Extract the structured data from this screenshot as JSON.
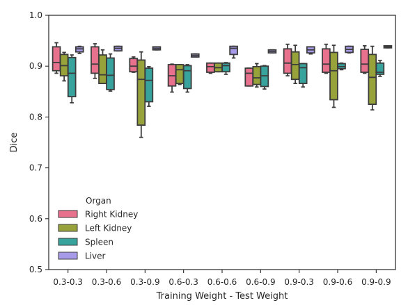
{
  "chart_data": {
    "type": "box",
    "xlabel": "Training Weight - Test Weight",
    "ylabel": "Dice",
    "ylim": [
      0.5,
      1.0
    ],
    "yticks": [
      0.5,
      0.6,
      0.7,
      0.8,
      0.9,
      1.0
    ],
    "ytick_labels": [
      "0.5",
      "0.6",
      "0.7",
      "0.8",
      "0.9",
      "1.0"
    ],
    "categories": [
      "0.3-0.3",
      "0.3-0.6",
      "0.3-0.9",
      "0.6-0.3",
      "0.6-0.6",
      "0.6-0.9",
      "0.9-0.3",
      "0.9-0.6",
      "0.9-0.9"
    ],
    "legend": {
      "title": "Organ",
      "placement": "lower-left"
    },
    "series": [
      {
        "name": "Right Kidney",
        "color": "#e8718d",
        "boxes": [
          {
            "whislo": 0.886,
            "q1": 0.891,
            "med": 0.907,
            "q3": 0.938,
            "whishi": 0.946
          },
          {
            "whislo": 0.876,
            "q1": 0.886,
            "med": 0.904,
            "q3": 0.938,
            "whishi": 0.944
          },
          {
            "whislo": 0.888,
            "q1": 0.889,
            "med": 0.9,
            "q3": 0.915,
            "whishi": 0.918
          },
          {
            "whislo": 0.849,
            "q1": 0.861,
            "med": 0.881,
            "q3": 0.903,
            "whishi": 0.904
          },
          {
            "whislo": 0.886,
            "q1": 0.888,
            "med": 0.899,
            "q3": 0.906,
            "whishi": 0.906
          },
          {
            "whislo": 0.861,
            "q1": 0.861,
            "med": 0.886,
            "q3": 0.896,
            "whishi": 0.896
          },
          {
            "whislo": 0.881,
            "q1": 0.886,
            "med": 0.906,
            "q3": 0.934,
            "whishi": 0.943
          },
          {
            "whislo": 0.886,
            "q1": 0.888,
            "med": 0.904,
            "q3": 0.934,
            "whishi": 0.943
          },
          {
            "whislo": 0.886,
            "q1": 0.888,
            "med": 0.904,
            "q3": 0.933,
            "whishi": 0.94
          }
        ]
      },
      {
        "name": "Left Kidney",
        "color": "#97a23a",
        "boxes": [
          {
            "whislo": 0.871,
            "q1": 0.881,
            "med": 0.901,
            "q3": 0.923,
            "whishi": 0.927
          },
          {
            "whislo": 0.866,
            "q1": 0.866,
            "med": 0.883,
            "q3": 0.922,
            "whishi": 0.932
          },
          {
            "whislo": 0.76,
            "q1": 0.784,
            "med": 0.874,
            "q3": 0.912,
            "whishi": 0.928
          },
          {
            "whislo": 0.864,
            "q1": 0.866,
            "med": 0.893,
            "q3": 0.903,
            "whishi": 0.903
          },
          {
            "whislo": 0.889,
            "q1": 0.889,
            "med": 0.897,
            "q3": 0.906,
            "whishi": 0.906
          },
          {
            "whislo": 0.859,
            "q1": 0.864,
            "med": 0.877,
            "q3": 0.899,
            "whishi": 0.905
          },
          {
            "whislo": 0.866,
            "q1": 0.874,
            "med": 0.903,
            "q3": 0.928,
            "whishi": 0.941
          },
          {
            "whislo": 0.819,
            "q1": 0.834,
            "med": 0.891,
            "q3": 0.927,
            "whishi": 0.941
          },
          {
            "whislo": 0.814,
            "q1": 0.825,
            "med": 0.878,
            "q3": 0.923,
            "whishi": 0.939
          }
        ]
      },
      {
        "name": "Spleen",
        "color": "#38a39d",
        "boxes": [
          {
            "whislo": 0.828,
            "q1": 0.84,
            "med": 0.886,
            "q3": 0.917,
            "whishi": 0.922
          },
          {
            "whislo": 0.851,
            "q1": 0.854,
            "med": 0.882,
            "q3": 0.916,
            "whishi": 0.924
          },
          {
            "whislo": 0.821,
            "q1": 0.83,
            "med": 0.872,
            "q3": 0.896,
            "whishi": 0.899
          },
          {
            "whislo": 0.849,
            "q1": 0.856,
            "med": 0.891,
            "q3": 0.901,
            "whishi": 0.903
          },
          {
            "whislo": 0.884,
            "q1": 0.889,
            "med": 0.901,
            "q3": 0.906,
            "whishi": 0.907
          },
          {
            "whislo": 0.855,
            "q1": 0.86,
            "med": 0.881,
            "q3": 0.9,
            "whishi": 0.901
          },
          {
            "whislo": 0.859,
            "q1": 0.866,
            "med": 0.897,
            "q3": 0.905,
            "whishi": 0.905
          },
          {
            "whislo": 0.893,
            "q1": 0.895,
            "med": 0.899,
            "q3": 0.905,
            "whishi": 0.906
          },
          {
            "whislo": 0.88,
            "q1": 0.884,
            "med": 0.888,
            "q3": 0.906,
            "whishi": 0.911
          }
        ]
      },
      {
        "name": "Liver",
        "color": "#a79ae8",
        "boxes": [
          {
            "whislo": 0.925,
            "q1": 0.928,
            "med": 0.934,
            "q3": 0.938,
            "whishi": 0.939
          },
          {
            "whislo": 0.93,
            "q1": 0.93,
            "med": 0.935,
            "q3": 0.939,
            "whishi": 0.939
          },
          {
            "whislo": 0.932,
            "q1": 0.932,
            "med": 0.935,
            "q3": 0.938,
            "whishi": 0.938
          },
          {
            "whislo": 0.918,
            "q1": 0.918,
            "med": 0.921,
            "q3": 0.924,
            "whishi": 0.924
          },
          {
            "whislo": 0.916,
            "q1": 0.923,
            "med": 0.935,
            "q3": 0.939,
            "whishi": 0.939
          },
          {
            "whislo": 0.926,
            "q1": 0.926,
            "med": 0.929,
            "q3": 0.932,
            "whishi": 0.932
          },
          {
            "whislo": 0.924,
            "q1": 0.926,
            "med": 0.932,
            "q3": 0.938,
            "whishi": 0.938
          },
          {
            "whislo": 0.926,
            "q1": 0.927,
            "med": 0.933,
            "q3": 0.939,
            "whishi": 0.939
          },
          {
            "whislo": 0.936,
            "q1": 0.936,
            "med": 0.938,
            "q3": 0.94,
            "whishi": 0.94
          }
        ]
      }
    ],
    "grid": false
  }
}
